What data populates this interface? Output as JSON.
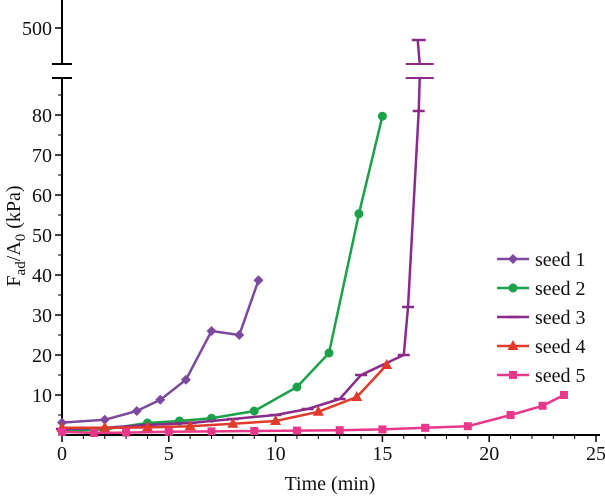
{
  "chart_data": {
    "type": "line",
    "title": "",
    "xlabel": "Time (min)",
    "ylabel": "F_ad/A_0 (kPa)",
    "ylabel_parts": {
      "f": "F",
      "sub_ad": "ad",
      "slash_a": "/A",
      "sub_0": "0",
      "unit": " (kPa)"
    },
    "xlim": [
      0,
      25
    ],
    "ylim": [
      0,
      90
    ],
    "upper_panel_tick": 500,
    "axis_break": true,
    "x_ticks": [
      0,
      5,
      10,
      15,
      20,
      25
    ],
    "y_ticks": [
      10,
      20,
      30,
      40,
      50,
      60,
      70,
      80
    ],
    "legend_position": "right",
    "series": [
      {
        "name": "seed 1",
        "color": "#7b4a9e",
        "marker": "diamond",
        "x": [
          0,
          2,
          3.5,
          4.6,
          5.8,
          7,
          8.3,
          9.2
        ],
        "y": [
          3.1,
          3.8,
          6,
          8.8,
          13.8,
          26,
          25,
          38.7
        ]
      },
      {
        "name": "seed 2",
        "color": "#1ca04a",
        "marker": "circle",
        "x": [
          0,
          2,
          4,
          5.5,
          7,
          9,
          11,
          12.5,
          13.9,
          15
        ],
        "y": [
          1,
          1.4,
          3,
          3.5,
          4.2,
          6,
          12,
          20.5,
          55.3,
          79.7
        ]
      },
      {
        "name": "seed 3",
        "color": "#8a2a8a",
        "marker": "dash",
        "x": [
          0,
          2,
          4,
          6,
          8,
          10,
          11.5,
          13,
          14,
          16
        ],
        "y": [
          1.5,
          1.8,
          2.5,
          3,
          4,
          5,
          6.5,
          9,
          15,
          20
        ],
        "upper_x": [
          16.2,
          16.7
        ],
        "upper_y": [
          32,
          81
        ]
      },
      {
        "name": "seed 4",
        "color": "#e23a2a",
        "marker": "triangle",
        "x": [
          0,
          2,
          4,
          6,
          8,
          10,
          12,
          13.8,
          15.2
        ],
        "y": [
          1.8,
          1.8,
          1.9,
          2.2,
          2.8,
          3.5,
          5.8,
          9.5,
          17.5
        ]
      },
      {
        "name": "seed 5",
        "color": "#e8388a",
        "marker": "square",
        "x": [
          0,
          1.5,
          3,
          5,
          7,
          9,
          11,
          13,
          15,
          17,
          19,
          21,
          22.5,
          23.5
        ],
        "y": [
          0.8,
          0.5,
          0.6,
          0.8,
          0.9,
          1,
          1.1,
          1.2,
          1.4,
          1.8,
          2.2,
          5,
          7.3,
          10
        ]
      }
    ]
  }
}
